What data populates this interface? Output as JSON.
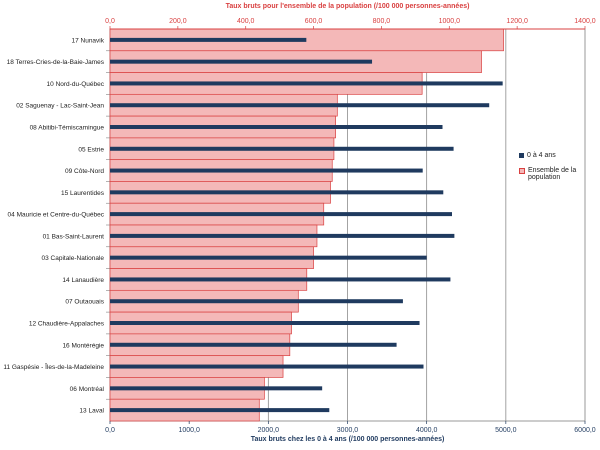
{
  "chart_data": {
    "type": "bar",
    "x_top_label": "Taux bruts pour l'ensemble de la population (/100 000 personnes-années)",
    "x_bottom_label": "Taux bruts chez les 0 à 4 ans (/100 000 personnes-années)",
    "x_top_range": [
      0,
      1400
    ],
    "x_bottom_range": [
      0,
      6000
    ],
    "x_top_ticks": [
      "0,0",
      "200,0",
      "400,0",
      "600,0",
      "800,0",
      "1000,0",
      "1200,0",
      "1400,0"
    ],
    "x_bottom_ticks": [
      "0,0",
      "1000,0",
      "2000,0",
      "3000,0",
      "4000,0",
      "5000,0",
      "6000,0"
    ],
    "legend_position": "right",
    "grid": true,
    "categories": [
      "17 Nunavik",
      "18 Terres-Cries-de-la-Baie-James",
      "10 Nord-du-Québec",
      "02 Saguenay - Lac-Saint-Jean",
      "08 Abitibi-Témiscamingue",
      "05 Estrie",
      "09 Côte-Nord",
      "15 Laurentides",
      "04 Mauricie et Centre-du-Québec",
      "01 Bas-Saint-Laurent",
      "03 Capitale-Nationale",
      "14 Lanaudière",
      "07 Outaouais",
      "12 Chaudière-Appalaches",
      "16 Montérégie",
      "11 Gaspésie - Îles-de-la-Madeleine",
      "06 Montréal",
      "13 Laval"
    ],
    "series": [
      {
        "name": "0 à 4 ans",
        "axis": "bottom",
        "color": "#1f3a5f",
        "values": [
          2480,
          3310,
          4960,
          4790,
          4200,
          4340,
          3950,
          4210,
          4320,
          4350,
          4000,
          4300,
          3700,
          3910,
          3620,
          3960,
          2680,
          2770
        ]
      },
      {
        "name": "Ensemble de la population",
        "axis": "top",
        "color": "#f4b8b8",
        "border": "#d94040",
        "values": [
          1160,
          1095,
          920,
          670,
          665,
          660,
          655,
          650,
          630,
          610,
          600,
          580,
          555,
          535,
          530,
          510,
          455,
          440
        ]
      }
    ]
  }
}
